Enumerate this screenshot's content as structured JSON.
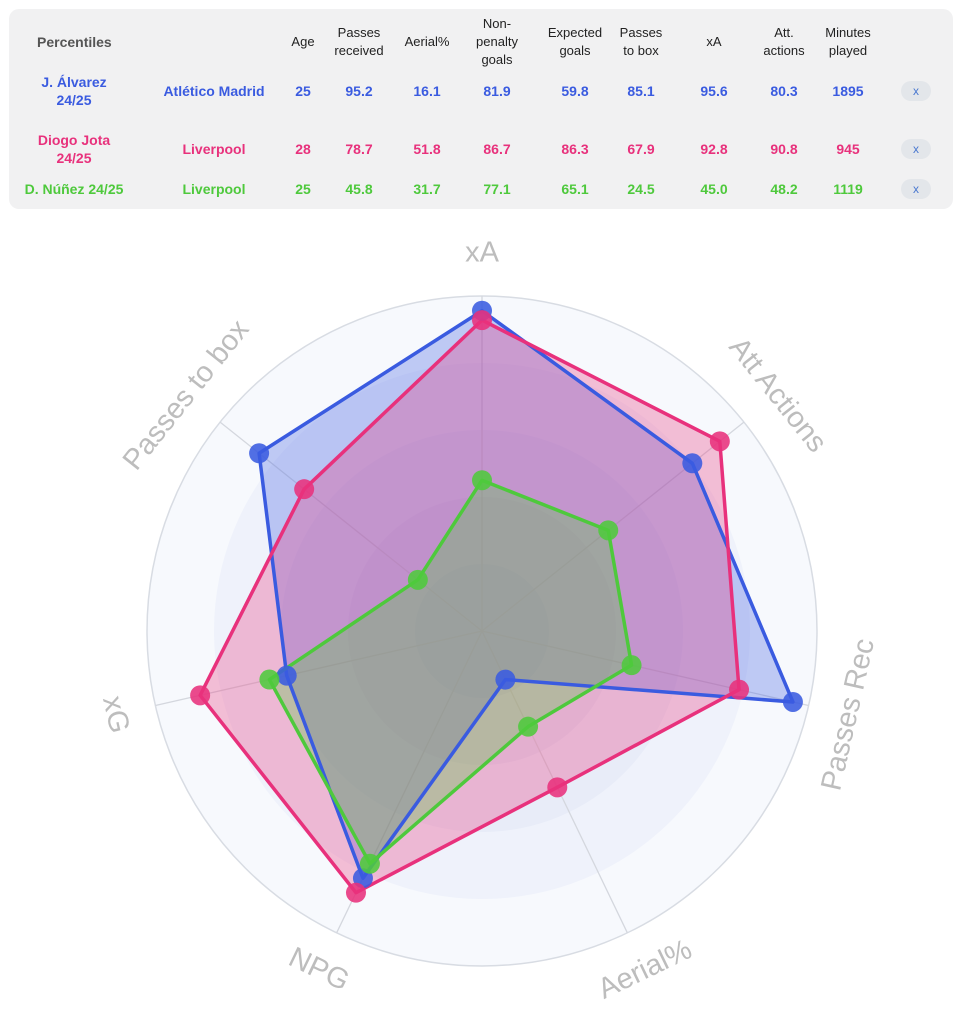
{
  "table": {
    "headers": [
      "Percentiles",
      "",
      "Age",
      "Passes\nreceived",
      "Aerial%",
      "Non-\npenalty\ngoals",
      "Expected\ngoals",
      "Passes\nto box",
      "xA",
      "Att.\nactions",
      "Minutes\nplayed"
    ],
    "rows": [
      {
        "player": "J. Álvarez\n24/25",
        "team": "Atlético Madrid",
        "color": "#3a5be0",
        "values": [
          "25",
          "95.2",
          "16.1",
          "81.9",
          "59.8",
          "85.1",
          "95.6",
          "80.3",
          "1895"
        ],
        "remove": "x"
      },
      {
        "player": "Diogo Jota\n24/25",
        "team": "Liverpool",
        "color": "#e8317c",
        "values": [
          "28",
          "78.7",
          "51.8",
          "86.7",
          "86.3",
          "67.9",
          "92.8",
          "90.8",
          "945"
        ],
        "remove": "x"
      },
      {
        "player": "D. Núñez 24/25",
        "team": "Liverpool",
        "color": "#4ec93c",
        "values": [
          "25",
          "45.8",
          "31.7",
          "77.1",
          "65.1",
          "24.5",
          "45.0",
          "48.2",
          "1119"
        ],
        "remove": "x"
      }
    ]
  },
  "chart_data": {
    "type": "radar",
    "axes": [
      "xA",
      "Att Actions",
      "Passes Rec",
      "Aerial%",
      "NPG",
      "xG",
      "Passes to box"
    ],
    "range": [
      0,
      100
    ],
    "series": [
      {
        "name": "J. Álvarez 24/25",
        "color": "#3a5be0",
        "values": [
          95.6,
          80.3,
          95.2,
          16.1,
          81.9,
          59.8,
          85.1
        ]
      },
      {
        "name": "Diogo Jota 24/25",
        "color": "#e8317c",
        "values": [
          92.8,
          90.8,
          78.7,
          51.8,
          86.7,
          86.3,
          67.9
        ]
      },
      {
        "name": "D. Núñez 24/25",
        "color": "#4ec93c",
        "values": [
          45.0,
          48.2,
          45.8,
          31.7,
          77.1,
          65.1,
          24.5
        ]
      }
    ]
  }
}
